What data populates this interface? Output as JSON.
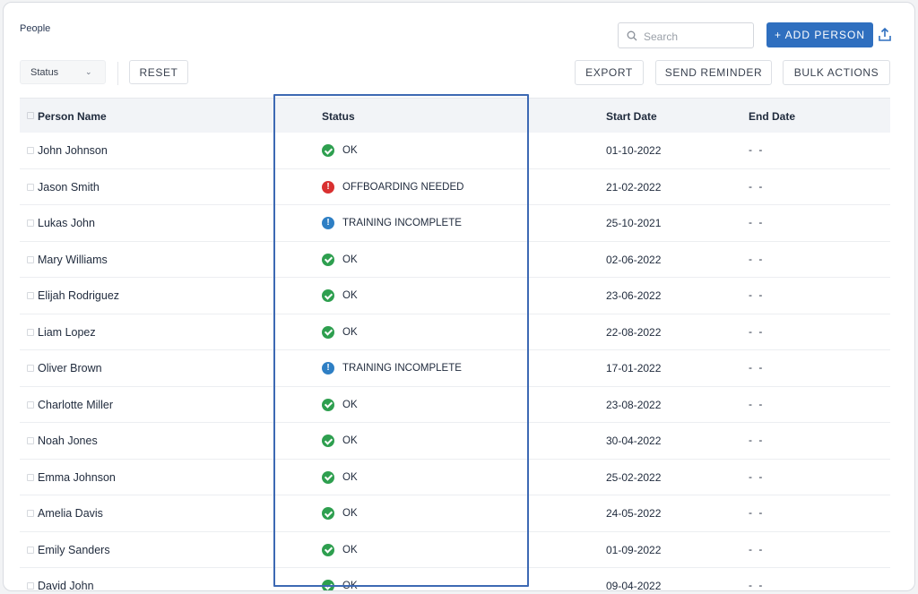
{
  "page": {
    "title": "People"
  },
  "search": {
    "placeholder": "Search"
  },
  "toolbar": {
    "add_person": "+ ADD PERSON",
    "status_filter": "Status",
    "reset": "RESET",
    "export": "EXPORT",
    "send_reminder": "SEND REMINDER",
    "bulk_actions": "BULK ACTIONS"
  },
  "table": {
    "headers": {
      "name": "Person Name",
      "status": "Status",
      "start": "Start Date",
      "end": "End Date"
    },
    "rows": [
      {
        "name": "John Johnson",
        "status": "OK",
        "kind": "ok",
        "start": "01-10-2022",
        "end": "- -"
      },
      {
        "name": "Jason Smith",
        "status": "OFFBOARDING NEEDED",
        "kind": "bad",
        "start": "21-02-2022",
        "end": "- -"
      },
      {
        "name": "Lukas John",
        "status": "TRAINING INCOMPLETE",
        "kind": "warn",
        "start": "25-10-2021",
        "end": "- -"
      },
      {
        "name": "Mary Williams",
        "status": "OK",
        "kind": "ok",
        "start": "02-06-2022",
        "end": "- -"
      },
      {
        "name": "Elijah Rodriguez",
        "status": "OK",
        "kind": "ok",
        "start": "23-06-2022",
        "end": "- -"
      },
      {
        "name": "Liam Lopez",
        "status": "OK",
        "kind": "ok",
        "start": "22-08-2022",
        "end": "- -"
      },
      {
        "name": "Oliver Brown",
        "status": "TRAINING INCOMPLETE",
        "kind": "warn",
        "start": "17-01-2022",
        "end": "- -"
      },
      {
        "name": "Charlotte Miller",
        "status": "OK",
        "kind": "ok",
        "start": "23-08-2022",
        "end": "- -"
      },
      {
        "name": "Noah Jones",
        "status": "OK",
        "kind": "ok",
        "start": "30-04-2022",
        "end": "- -"
      },
      {
        "name": "Emma Johnson",
        "status": "OK",
        "kind": "ok",
        "start": "25-02-2022",
        "end": "- -"
      },
      {
        "name": "Amelia Davis",
        "status": "OK",
        "kind": "ok",
        "start": "24-05-2022",
        "end": "- -"
      },
      {
        "name": "Emily Sanders",
        "status": "OK",
        "kind": "ok",
        "start": "01-09-2022",
        "end": "- -"
      },
      {
        "name": "David John",
        "status": "OK",
        "kind": "ok",
        "start": "09-04-2022",
        "end": "- -"
      }
    ]
  },
  "icons": {
    "ok": "check-circle-icon",
    "bad": "alert-circle-icon",
    "warn": "info-octagon-icon"
  },
  "colors": {
    "primary": "#2f6fbf",
    "ok": "#2e9f4f",
    "bad": "#d93030",
    "warn": "#2e7fc4",
    "highlight": "#3d69b3"
  }
}
